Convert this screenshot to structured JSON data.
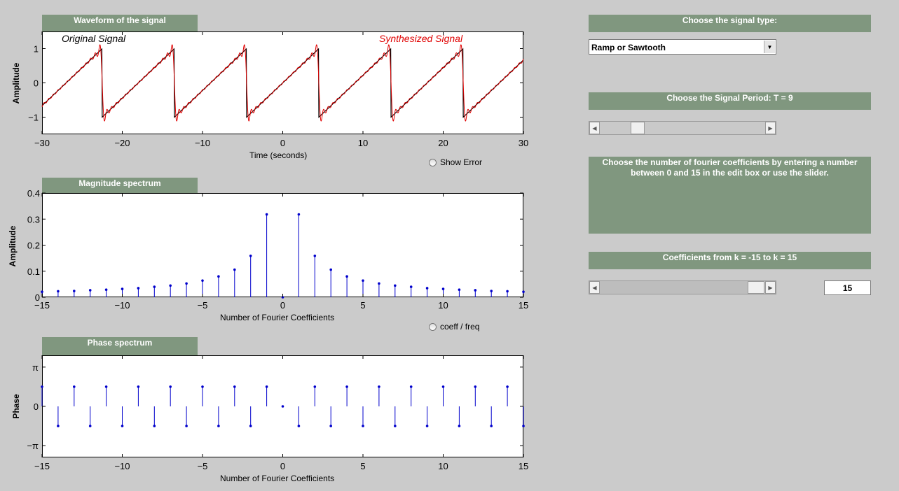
{
  "waveform": {
    "title": "Waveform of the signal",
    "xlabel": "Time (seconds)",
    "ylabel": "Amplitude",
    "legend_original": "Original Signal",
    "legend_synth": "Synthesized Signal",
    "xticks": [
      "−30",
      "−20",
      "−10",
      "0",
      "10",
      "20",
      "30"
    ],
    "yticks": [
      "1",
      "0",
      "−1"
    ],
    "show_error_label": "Show Error"
  },
  "magnitude": {
    "title": "Magnitude spectrum",
    "xlabel": "Number of Fourier Coefficients",
    "ylabel": "Amplitude",
    "xticks": [
      "−15",
      "−10",
      "−5",
      "0",
      "5",
      "10",
      "15"
    ],
    "yticks": [
      "0.4",
      "0.3",
      "0.2",
      "0.1",
      "0"
    ],
    "toggle_label": "coeff / freq"
  },
  "phase": {
    "title": "Phase spectrum",
    "xlabel": "Number of Fourier Coefficients",
    "ylabel": "Phase",
    "xticks": [
      "−15",
      "−10",
      "−5",
      "0",
      "5",
      "10",
      "15"
    ],
    "yticks": [
      "π",
      "0",
      "−π"
    ]
  },
  "controls": {
    "signal_type_title": "Choose the signal type:",
    "signal_type_value": "Ramp or Sawtooth",
    "period_title": "Choose the Signal Period: T = 9",
    "period_value": 9,
    "coeff_instructions": "Choose the number of fourier coefficients by entering a number between 0 and 15 in the edit box or use the slider.",
    "coeff_range_title": "Coefficients from k = -15  to  k = 15",
    "coeff_value": "15"
  },
  "colors": {
    "panel": "#80977f",
    "stem": "#0000cc",
    "synth": "#e00000",
    "orig": "#000000"
  },
  "chart_data": [
    {
      "type": "line",
      "period": 9,
      "x_range": [
        -30,
        30
      ],
      "ylim": [
        -1.5,
        1.5
      ],
      "series": [
        {
          "name": "Original Signal",
          "shape": "sawtooth",
          "period": 9,
          "amplitude": 1
        },
        {
          "name": "Synthesized Signal",
          "shape": "sawtooth",
          "period": 9,
          "amplitude": 1,
          "harmonics": 15
        }
      ],
      "xlabel": "Time (seconds)",
      "ylabel": "Amplitude"
    },
    {
      "type": "scatter",
      "x": [
        -15,
        -14,
        -13,
        -12,
        -11,
        -10,
        -9,
        -8,
        -7,
        -6,
        -5,
        -4,
        -3,
        -2,
        -1,
        0,
        1,
        2,
        3,
        4,
        5,
        6,
        7,
        8,
        9,
        10,
        11,
        12,
        13,
        14,
        15
      ],
      "values": [
        0.021,
        0.023,
        0.024,
        0.027,
        0.029,
        0.032,
        0.035,
        0.04,
        0.045,
        0.053,
        0.064,
        0.08,
        0.106,
        0.159,
        0.318,
        0,
        0.318,
        0.159,
        0.106,
        0.08,
        0.064,
        0.053,
        0.045,
        0.04,
        0.035,
        0.032,
        0.029,
        0.027,
        0.024,
        0.023,
        0.021
      ],
      "xlim": [
        -15,
        15
      ],
      "ylim": [
        0,
        0.4
      ],
      "xlabel": "Number of Fourier Coefficients",
      "ylabel": "Amplitude"
    },
    {
      "type": "scatter",
      "x": [
        -15,
        -14,
        -13,
        -12,
        -11,
        -10,
        -9,
        -8,
        -7,
        -6,
        -5,
        -4,
        -3,
        -2,
        -1,
        0,
        1,
        2,
        3,
        4,
        5,
        6,
        7,
        8,
        9,
        10,
        11,
        12,
        13,
        14,
        15
      ],
      "values": [
        0.5,
        -0.5,
        0.5,
        -0.5,
        0.5,
        -0.5,
        0.5,
        -0.5,
        0.5,
        -0.5,
        0.5,
        -0.5,
        0.5,
        -0.5,
        0.5,
        0,
        -0.5,
        0.5,
        -0.5,
        0.5,
        -0.5,
        0.5,
        -0.5,
        0.5,
        -0.5,
        0.5,
        -0.5,
        0.5,
        -0.5,
        0.5,
        -0.5
      ],
      "values_unit": "multiples of pi",
      "xlim": [
        -15,
        15
      ],
      "ylim": [
        -1.3,
        1.3
      ],
      "xlabel": "Number of Fourier Coefficients",
      "ylabel": "Phase"
    }
  ]
}
